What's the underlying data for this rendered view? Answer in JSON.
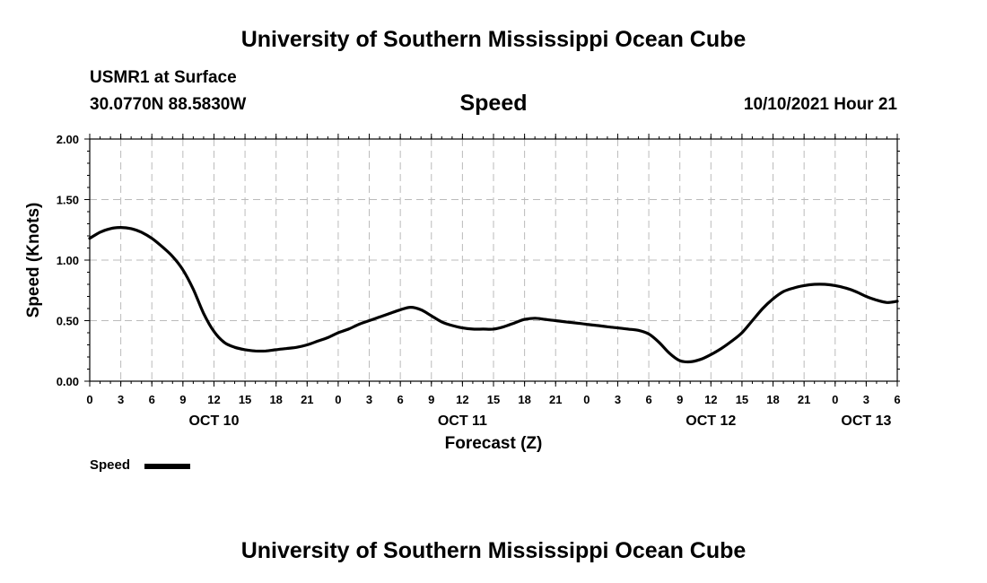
{
  "header": {
    "top_title": "University of Southern Mississippi Ocean Cube",
    "bottom_title": "University of Southern Mississippi Ocean Cube",
    "station": "USMR1 at Surface",
    "location": "30.0770N  88.5830W",
    "datetime": "10/10/2021 Hour 21"
  },
  "legend": {
    "label": "Speed"
  },
  "chart_data": {
    "type": "line",
    "title": "Speed",
    "xlabel": "Forecast (Z)",
    "ylabel": "Speed (Knots)",
    "ylim": [
      0,
      2
    ],
    "xlim_hours": [
      0,
      78
    ],
    "y_ticks": [
      "0.00",
      "0.50",
      "1.00",
      "1.50",
      "2.00"
    ],
    "y_tick_values": [
      0,
      0.5,
      1,
      1.5,
      2
    ],
    "x_ticks": [
      {
        "hour": 0,
        "label": "0"
      },
      {
        "hour": 3,
        "label": "3"
      },
      {
        "hour": 6,
        "label": "6"
      },
      {
        "hour": 9,
        "label": "9"
      },
      {
        "hour": 12,
        "label": "12"
      },
      {
        "hour": 15,
        "label": "15"
      },
      {
        "hour": 18,
        "label": "18"
      },
      {
        "hour": 21,
        "label": "21"
      },
      {
        "hour": 24,
        "label": "0"
      },
      {
        "hour": 27,
        "label": "3"
      },
      {
        "hour": 30,
        "label": "6"
      },
      {
        "hour": 33,
        "label": "9"
      },
      {
        "hour": 36,
        "label": "12"
      },
      {
        "hour": 39,
        "label": "15"
      },
      {
        "hour": 42,
        "label": "18"
      },
      {
        "hour": 45,
        "label": "21"
      },
      {
        "hour": 48,
        "label": "0"
      },
      {
        "hour": 51,
        "label": "3"
      },
      {
        "hour": 54,
        "label": "6"
      },
      {
        "hour": 57,
        "label": "9"
      },
      {
        "hour": 60,
        "label": "12"
      },
      {
        "hour": 63,
        "label": "15"
      },
      {
        "hour": 66,
        "label": "18"
      },
      {
        "hour": 69,
        "label": "21"
      },
      {
        "hour": 72,
        "label": "0"
      },
      {
        "hour": 75,
        "label": "3"
      },
      {
        "hour": 78,
        "label": "6"
      }
    ],
    "day_labels": [
      {
        "hour": 12,
        "label": "OCT 10"
      },
      {
        "hour": 36,
        "label": "OCT 11"
      },
      {
        "hour": 60,
        "label": "OCT 12"
      },
      {
        "hour": 75,
        "label": "OCT 13"
      }
    ],
    "series": [
      {
        "name": "Speed",
        "color": "#000000",
        "x": [
          0,
          1,
          2,
          3,
          4,
          5,
          6,
          7,
          8,
          9,
          10,
          11,
          12,
          13,
          14,
          15,
          16,
          17,
          18,
          19,
          20,
          21,
          22,
          23,
          24,
          25,
          26,
          27,
          28,
          29,
          30,
          31,
          32,
          33,
          34,
          35,
          36,
          37,
          38,
          39,
          40,
          41,
          42,
          43,
          44,
          45,
          46,
          47,
          48,
          49,
          50,
          51,
          52,
          53,
          54,
          55,
          56,
          57,
          58,
          59,
          60,
          61,
          62,
          63,
          64,
          65,
          66,
          67,
          68,
          69,
          70,
          71,
          72,
          73,
          74,
          75,
          76,
          77,
          78
        ],
        "values": [
          1.18,
          1.23,
          1.26,
          1.27,
          1.26,
          1.23,
          1.18,
          1.11,
          1.03,
          0.92,
          0.76,
          0.56,
          0.41,
          0.32,
          0.28,
          0.26,
          0.25,
          0.25,
          0.26,
          0.27,
          0.28,
          0.3,
          0.33,
          0.36,
          0.4,
          0.43,
          0.47,
          0.5,
          0.53,
          0.56,
          0.59,
          0.61,
          0.59,
          0.54,
          0.49,
          0.46,
          0.44,
          0.43,
          0.43,
          0.43,
          0.45,
          0.48,
          0.51,
          0.52,
          0.51,
          0.5,
          0.49,
          0.48,
          0.47,
          0.46,
          0.45,
          0.44,
          0.43,
          0.42,
          0.39,
          0.32,
          0.23,
          0.17,
          0.16,
          0.18,
          0.22,
          0.27,
          0.33,
          0.4,
          0.5,
          0.6,
          0.68,
          0.74,
          0.77,
          0.79,
          0.8,
          0.8,
          0.79,
          0.77,
          0.74,
          0.7,
          0.67,
          0.65,
          0.66
        ]
      }
    ]
  }
}
